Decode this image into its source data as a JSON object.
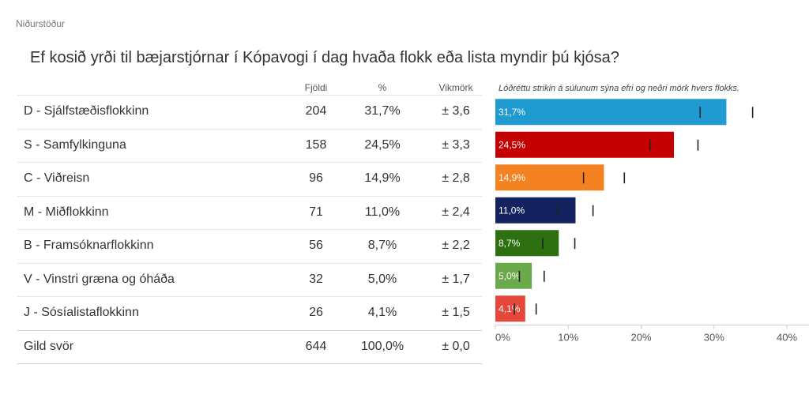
{
  "section_label": "Niðurstöður",
  "question": "Ef kosið yrði til bæjarstjórnar í Kópavogi í dag hvaða flokk eða lista myndir þú kjósa?",
  "table": {
    "headers": {
      "count": "Fjöldi",
      "percent": "%",
      "margin": "Vikmörk"
    },
    "rows": [
      {
        "name": "D - Sjálfstæðisflokkinn",
        "count": "204",
        "percent": "31,7%",
        "margin": "± 3,6"
      },
      {
        "name": "S - Samfylkinguna",
        "count": "158",
        "percent": "24,5%",
        "margin": "± 3,3"
      },
      {
        "name": "C - Viðreisn",
        "count": "96",
        "percent": "14,9%",
        "margin": "± 2,8"
      },
      {
        "name": "M - Miðflokkinn",
        "count": "71",
        "percent": "11,0%",
        "margin": "± 2,4"
      },
      {
        "name": "B - Framsóknarflokkinn",
        "count": "56",
        "percent": "8,7%",
        "margin": "± 2,2"
      },
      {
        "name": "V - Vinstri græna og óháða",
        "count": "32",
        "percent": "5,0%",
        "margin": "± 1,7"
      },
      {
        "name": "J - Sósíalistaflokkinn",
        "count": "26",
        "percent": "4,1%",
        "margin": "± 1,5"
      }
    ],
    "total": {
      "name": "Gild svör",
      "count": "644",
      "percent": "100,0%",
      "margin": "± 0,0"
    }
  },
  "chart_data": {
    "type": "bar",
    "orientation": "horizontal",
    "note": "Lóðréttu strikin á súlunum sýna efri og neðri mörk hvers flokks.",
    "categories": [
      "D - Sjálfstæðisflokkinn",
      "S - Samfylkinguna",
      "C - Viðreisn",
      "M - Miðflokkinn",
      "B - Framsóknarflokkinn",
      "V - Vinstri græna og óháða",
      "J - Sósíalistaflokkinn"
    ],
    "values": [
      31.7,
      24.5,
      14.9,
      11.0,
      8.7,
      5.0,
      4.1
    ],
    "margins": [
      3.6,
      3.3,
      2.8,
      2.4,
      2.2,
      1.7,
      1.5
    ],
    "value_labels": [
      "31,7%",
      "24,5%",
      "14,9%",
      "11,0%",
      "8,7%",
      "5,0%",
      "4,1%"
    ],
    "colors": [
      "#1f9bd1",
      "#c40000",
      "#f58220",
      "#14235f",
      "#2e6f12",
      "#6aaa4b",
      "#e5473a"
    ],
    "xlim": [
      0,
      40
    ],
    "xticks": [
      0,
      10,
      20,
      30,
      40
    ],
    "xtick_labels": [
      "0%",
      "10%",
      "20%",
      "30%",
      "40%"
    ],
    "grid": false
  }
}
